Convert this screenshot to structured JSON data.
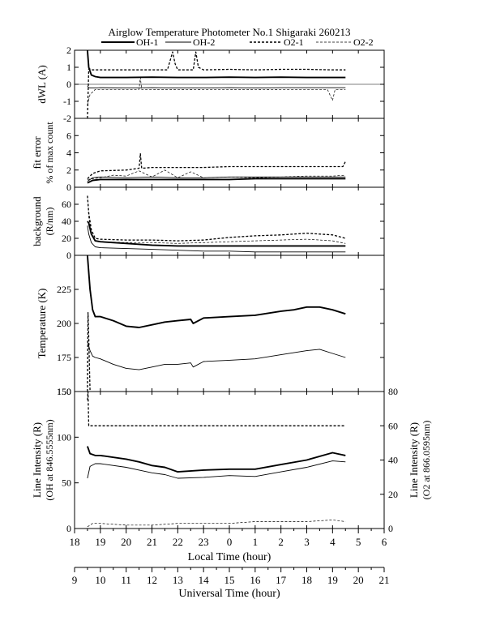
{
  "title": "Airglow Temperature Photometer No.1  Shigaraki  260213",
  "legend": [
    {
      "name": "OH-1",
      "style": "thick-solid"
    },
    {
      "name": "OH-2",
      "style": "thin-solid"
    },
    {
      "name": "O2-1",
      "style": "thick-dash"
    },
    {
      "name": "O2-2",
      "style": "thin-dash"
    }
  ],
  "x_axes": {
    "local": {
      "label": "Local Time (hour)",
      "ticks": [
        "18",
        "19",
        "20",
        "21",
        "22",
        "23",
        "0",
        "1",
        "2",
        "3",
        "4",
        "5",
        "6"
      ],
      "range": [
        18,
        30
      ]
    },
    "universal": {
      "label": "Universal Time (hour)",
      "ticks": [
        "9",
        "10",
        "11",
        "12",
        "13",
        "14",
        "15",
        "16",
        "17",
        "18",
        "19",
        "20",
        "21"
      ],
      "range": [
        9,
        21
      ]
    }
  },
  "chart_data": [
    {
      "type": "line",
      "panel": "dwl",
      "ylabel": "dWL (A)",
      "ylim": [
        -2,
        2
      ],
      "yticks": [
        "-2",
        "-1",
        "0",
        "1",
        "2"
      ],
      "series": [
        {
          "name": "OH-1",
          "x": [
            18.5,
            18.55,
            18.65,
            18.8,
            19,
            19.5,
            20,
            21,
            22,
            23,
            24,
            25,
            26,
            27,
            28,
            28.5
          ],
          "y": [
            2.0,
            1.0,
            0.55,
            0.45,
            0.4,
            0.4,
            0.4,
            0.42,
            0.4,
            0.4,
            0.42,
            0.4,
            0.42,
            0.4,
            0.4,
            0.4
          ]
        },
        {
          "name": "OH-2",
          "x": [
            18.5,
            18.55,
            18.65,
            18.8,
            19,
            20,
            21,
            22,
            23,
            24,
            25,
            26,
            27,
            28,
            28.5
          ],
          "y": [
            -0.1,
            -0.2,
            -0.22,
            -0.22,
            -0.2,
            -0.22,
            -0.2,
            -0.22,
            -0.22,
            -0.2,
            -0.22,
            -0.2,
            -0.2,
            -0.2,
            -0.2
          ]
        },
        {
          "name": "O2-1",
          "x": [
            18.5,
            18.55,
            18.6,
            18.65,
            18.8,
            19,
            20,
            21,
            21.6,
            21.8,
            21.9,
            22,
            22.6,
            22.7,
            22.8,
            23,
            24,
            25,
            26,
            27,
            28,
            28.5
          ],
          "y": [
            -2.0,
            0.9,
            0.9,
            0.85,
            0.85,
            0.85,
            0.85,
            0.85,
            0.85,
            1.9,
            1.2,
            0.85,
            0.85,
            1.9,
            1.0,
            0.85,
            0.88,
            0.85,
            0.88,
            0.88,
            0.85,
            0.85
          ]
        },
        {
          "name": "O2-2",
          "x": [
            18.5,
            18.6,
            18.8,
            19,
            20,
            20.5,
            20.55,
            20.6,
            21,
            22,
            23,
            24,
            25,
            26,
            27,
            27.8,
            28.0,
            28.1,
            28.5
          ],
          "y": [
            -1.2,
            -0.6,
            -0.3,
            -0.3,
            -0.3,
            -0.3,
            0.4,
            -0.3,
            -0.3,
            -0.32,
            -0.3,
            -0.3,
            -0.32,
            -0.3,
            -0.3,
            -0.3,
            -0.95,
            -0.3,
            -0.3
          ]
        }
      ]
    },
    {
      "type": "line",
      "panel": "fiterror",
      "ylabel": "fit error",
      "ylabel2": "% of max count",
      "ylim": [
        0,
        8
      ],
      "yticks": [
        "0",
        "2",
        "4",
        "6"
      ],
      "series": [
        {
          "name": "OH-1",
          "x": [
            18.5,
            18.7,
            19,
            20,
            21,
            22,
            23,
            24,
            25,
            26,
            27,
            28,
            28.5
          ],
          "y": [
            0.5,
            0.8,
            0.9,
            0.9,
            0.9,
            0.9,
            0.9,
            0.9,
            1.0,
            1.0,
            1.0,
            1.0,
            1.0
          ]
        },
        {
          "name": "OH-2",
          "x": [
            18.5,
            18.7,
            19,
            20,
            21,
            22,
            23,
            24,
            25,
            26,
            27,
            28,
            28.5
          ],
          "y": [
            0.7,
            1.1,
            1.2,
            1.1,
            1.2,
            1.1,
            1.1,
            1.2,
            1.2,
            1.2,
            1.2,
            1.2,
            1.2
          ]
        },
        {
          "name": "O2-1",
          "x": [
            18.5,
            18.7,
            19,
            20,
            20.5,
            20.55,
            20.6,
            21,
            22,
            23,
            24,
            25,
            26,
            27,
            28,
            28.4,
            28.5
          ],
          "y": [
            1.0,
            1.6,
            1.9,
            2.0,
            2.2,
            3.9,
            2.2,
            2.3,
            2.3,
            2.3,
            2.4,
            2.4,
            2.4,
            2.4,
            2.4,
            2.4,
            3.0
          ]
        },
        {
          "name": "O2-2",
          "x": [
            18.5,
            18.7,
            19,
            19.5,
            20,
            20.5,
            21,
            21.5,
            22,
            22.5,
            23,
            24,
            25,
            26,
            27,
            28,
            28.5
          ],
          "y": [
            0.9,
            1.0,
            1.1,
            1.4,
            1.3,
            1.9,
            1.2,
            2.0,
            1.1,
            1.8,
            1.1,
            1.2,
            1.1,
            1.2,
            1.3,
            1.3,
            1.4
          ]
        }
      ]
    },
    {
      "type": "line",
      "panel": "background",
      "ylabel": "background",
      "ylabel2": "(R/nm)",
      "ylim": [
        0,
        80
      ],
      "yticks": [
        "0",
        "20",
        "40",
        "60"
      ],
      "series": [
        {
          "name": "OH-1",
          "x": [
            18.5,
            18.55,
            18.65,
            18.8,
            19,
            20,
            21,
            22,
            23,
            24,
            25,
            26,
            27,
            28,
            28.5
          ],
          "y": [
            40,
            38,
            25,
            17,
            16,
            14,
            12,
            11,
            11,
            11,
            11,
            11,
            11,
            11,
            11
          ]
        },
        {
          "name": "OH-2",
          "x": [
            18.5,
            18.55,
            18.65,
            18.8,
            19,
            20,
            21,
            22,
            23,
            24,
            25,
            26,
            27,
            28,
            28.5
          ],
          "y": [
            35,
            25,
            15,
            10,
            9,
            8,
            7,
            6,
            5,
            5,
            4,
            4,
            4,
            4,
            4
          ]
        },
        {
          "name": "O2-1",
          "x": [
            18.5,
            18.55,
            18.65,
            18.8,
            19,
            20,
            21,
            22,
            23,
            24,
            25,
            26,
            27,
            28,
            28.5
          ],
          "y": [
            70,
            50,
            30,
            20,
            19,
            18,
            18,
            17,
            18,
            21,
            23,
            24,
            26,
            24,
            20
          ]
        },
        {
          "name": "O2-2",
          "x": [
            18.5,
            18.55,
            18.65,
            18.8,
            19,
            20,
            21,
            22,
            23,
            24,
            25,
            26,
            27,
            28,
            28.5
          ],
          "y": [
            70,
            45,
            25,
            17,
            16,
            15,
            15,
            14,
            15,
            16,
            17,
            18,
            19,
            17,
            14
          ]
        }
      ]
    },
    {
      "type": "line",
      "panel": "temperature",
      "ylabel": "Temperature (K)",
      "ylim": [
        150,
        250
      ],
      "yticks": [
        "150",
        "175",
        "200",
        "225"
      ],
      "series": [
        {
          "name": "OH-1",
          "x": [
            18.5,
            18.6,
            18.7,
            18.8,
            19,
            19.5,
            20,
            20.5,
            21,
            21.5,
            22,
            22.5,
            22.6,
            23,
            24,
            25,
            26,
            26.5,
            27,
            27.5,
            28,
            28.5
          ],
          "y": [
            250,
            225,
            210,
            205,
            205,
            202,
            198,
            197,
            199,
            201,
            202,
            203,
            200,
            204,
            205,
            206,
            209,
            210,
            212,
            212,
            210,
            207
          ]
        },
        {
          "name": "OH-2",
          "x": [
            18.5,
            18.6,
            18.7,
            18.8,
            19,
            19.5,
            20,
            20.5,
            21,
            21.5,
            22,
            22.5,
            22.6,
            23,
            24,
            25,
            26,
            27,
            27.5,
            28,
            28.5
          ],
          "y": [
            187,
            180,
            176,
            175,
            174,
            170,
            167,
            166,
            168,
            170,
            170,
            171,
            168,
            172,
            173,
            174,
            177,
            180,
            181,
            178,
            175
          ]
        },
        {
          "name": "O2-1",
          "x": [
            18.5,
            18.52,
            18.55,
            18.6
          ],
          "y": [
            150,
            208,
            190,
            150
          ]
        }
      ]
    },
    {
      "type": "line",
      "panel": "intensity",
      "ylabel": "Line Intensity (R)",
      "ylabel2": "(OH at 846.5555nm)",
      "ylim": [
        0,
        150
      ],
      "yticks": [
        "0",
        "50",
        "100",
        "150"
      ],
      "ylabel_right": "Line Intensity (R)",
      "ylabel2_right": "(O2 at 866.0595nm)",
      "ylim_right": [
        0,
        80
      ],
      "yticks_right": [
        "0",
        "20",
        "40",
        "60",
        "80"
      ],
      "series": [
        {
          "name": "OH-1",
          "x": [
            18.5,
            18.6,
            18.8,
            19,
            20,
            20.5,
            21,
            21.5,
            22,
            23,
            24,
            25,
            26,
            27,
            28,
            28.5
          ],
          "y": [
            90,
            82,
            80,
            80,
            76,
            73,
            69,
            67,
            62,
            64,
            65,
            65,
            70,
            75,
            83,
            80
          ]
        },
        {
          "name": "OH-2",
          "x": [
            18.5,
            18.6,
            18.8,
            19,
            20,
            20.5,
            21,
            21.5,
            22,
            23,
            24,
            25,
            26,
            27,
            28,
            28.5
          ],
          "y": [
            55,
            68,
            71,
            71,
            67,
            64,
            61,
            59,
            55,
            56,
            58,
            57,
            62,
            67,
            74,
            73
          ]
        },
        {
          "name": "O2-1",
          "axis": "right",
          "x": [
            18.5,
            18.52,
            18.55,
            18.6,
            18.7,
            19,
            20,
            21,
            22,
            23,
            24,
            25,
            26,
            27,
            28,
            28.5
          ],
          "y": [
            75,
            80,
            60,
            60,
            60,
            60,
            60,
            60,
            60,
            60,
            60,
            60,
            60,
            60,
            60,
            60
          ]
        },
        {
          "name": "O2-2",
          "axis": "right",
          "x": [
            18.5,
            18.7,
            19,
            20,
            21,
            22,
            23,
            24,
            25,
            26,
            27,
            28,
            28.5
          ],
          "y": [
            1,
            3,
            3,
            2,
            2,
            3,
            3,
            3,
            4,
            4,
            4,
            5,
            4
          ]
        }
      ]
    }
  ]
}
